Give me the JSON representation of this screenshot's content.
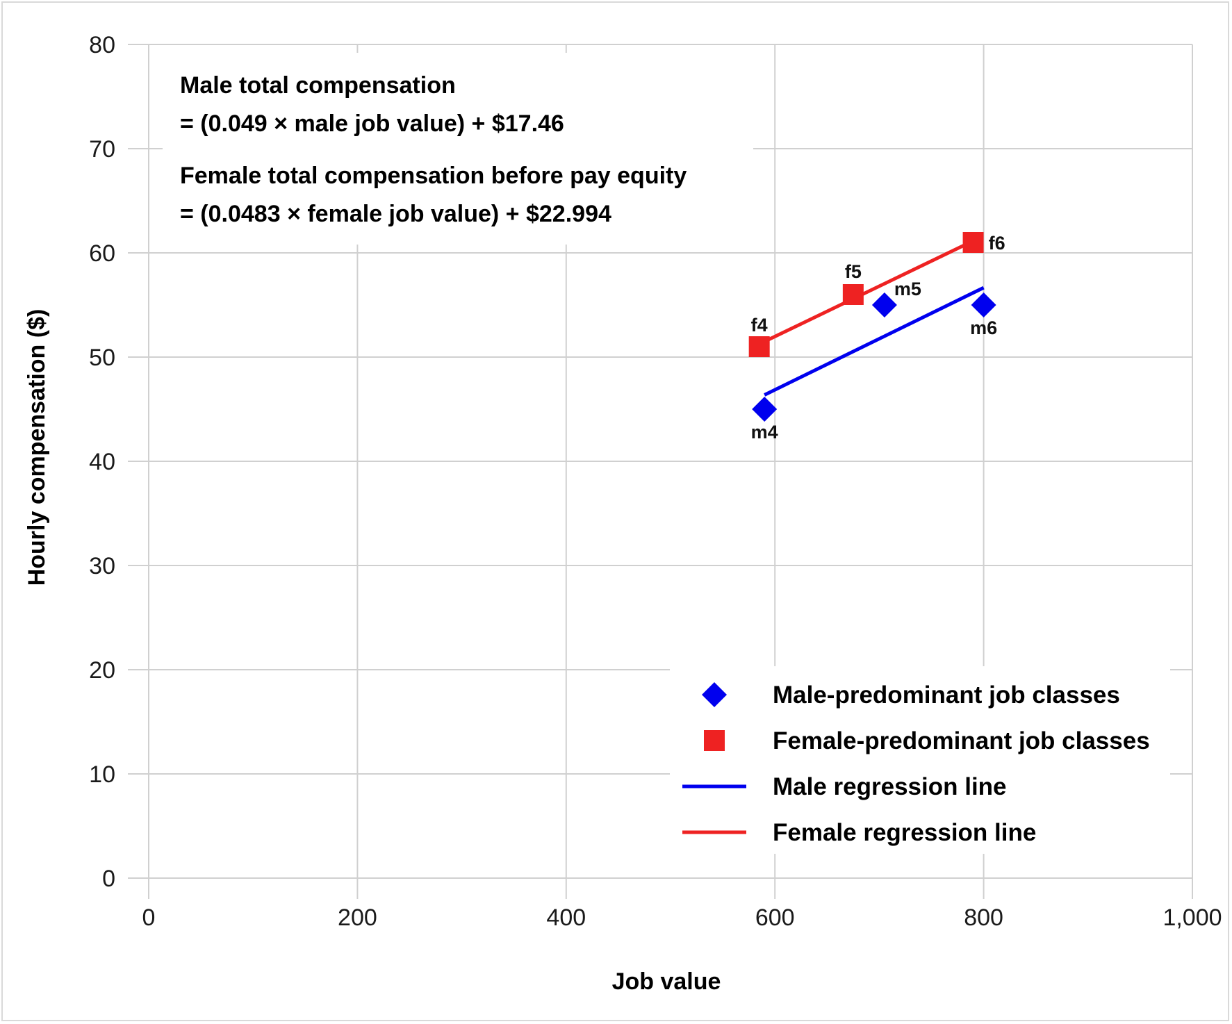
{
  "chart_data": {
    "type": "scatter",
    "xlabel": "Job value",
    "ylabel": "Hourly compensation ($)",
    "xlim": [
      0,
      1000
    ],
    "ylim": [
      0,
      80
    ],
    "x_ticks": [
      "0",
      "200",
      "400",
      "600",
      "800",
      "1,000"
    ],
    "y_ticks": [
      "0",
      "10",
      "20",
      "30",
      "40",
      "50",
      "60",
      "70",
      "80"
    ],
    "grid": true,
    "legend_position": "bottom-right",
    "annotations": [
      "Male total compensation",
      "= (0.049 × male job value) + $17.46",
      "Female total compensation before pay equity",
      "= (0.0483 × female job value) + $22.994"
    ],
    "series": [
      {
        "name": "Male-predominant job classes",
        "marker": "diamond",
        "color": "#0000ee",
        "points": [
          {
            "label": "m4",
            "x": 590,
            "y": 45
          },
          {
            "label": "m5",
            "x": 705,
            "y": 55
          },
          {
            "label": "m6",
            "x": 800,
            "y": 55
          }
        ]
      },
      {
        "name": "Female-predominant job classes",
        "marker": "square",
        "color": "#ee2222",
        "points": [
          {
            "label": "f4",
            "x": 585,
            "y": 51
          },
          {
            "label": "f5",
            "x": 675,
            "y": 56
          },
          {
            "label": "f6",
            "x": 790,
            "y": 61
          }
        ]
      }
    ],
    "regression_lines": [
      {
        "name": "Male regression line",
        "color": "#0000ee",
        "slope": 0.049,
        "intercept": 17.46,
        "x_range": [
          590,
          800
        ]
      },
      {
        "name": "Female regression line",
        "color": "#ee2222",
        "slope": 0.0483,
        "intercept": 22.994,
        "x_range": [
          585,
          790
        ]
      }
    ]
  }
}
